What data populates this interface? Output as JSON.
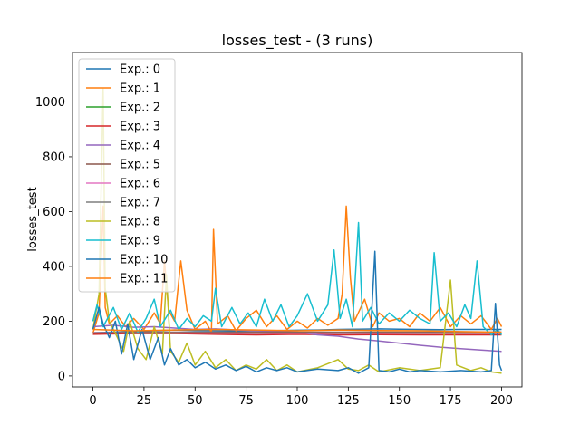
{
  "chart_data": {
    "type": "line",
    "title": "losses_test - (3 runs)",
    "xlabel": "",
    "ylabel": "losses_test",
    "xlim": [
      -10,
      210
    ],
    "ylim": [
      -40,
      1180
    ],
    "xticks": [
      0,
      25,
      50,
      75,
      100,
      125,
      150,
      175,
      200
    ],
    "yticks": [
      0,
      200,
      400,
      600,
      800,
      1000
    ],
    "grid": false,
    "legend_position": "top-left",
    "series": [
      {
        "name": "Exp.: 0",
        "color": "#1f77b4",
        "values": [
          [
            0,
            158
          ],
          [
            10,
            160
          ],
          [
            20,
            162
          ],
          [
            30,
            165
          ],
          [
            40,
            168
          ],
          [
            50,
            166
          ],
          [
            60,
            165
          ],
          [
            70,
            164
          ],
          [
            80,
            165
          ],
          [
            90,
            166
          ],
          [
            100,
            167
          ],
          [
            110,
            168
          ],
          [
            120,
            170
          ],
          [
            130,
            171
          ],
          [
            140,
            172
          ],
          [
            150,
            171
          ],
          [
            160,
            170
          ],
          [
            170,
            169
          ],
          [
            180,
            170
          ],
          [
            190,
            170
          ],
          [
            200,
            170
          ]
        ]
      },
      {
        "name": "Exp.: 1",
        "color": "#ff7f0e",
        "values": [
          [
            0,
            155
          ],
          [
            3,
            230
          ],
          [
            5,
            620
          ],
          [
            6,
            250
          ],
          [
            8,
            190
          ],
          [
            12,
            220
          ],
          [
            16,
            180
          ],
          [
            20,
            210
          ],
          [
            25,
            170
          ],
          [
            30,
            230
          ],
          [
            33,
            190
          ],
          [
            35,
            420
          ],
          [
            37,
            240
          ],
          [
            40,
            200
          ],
          [
            43,
            420
          ],
          [
            46,
            240
          ],
          [
            50,
            170
          ],
          [
            55,
            200
          ],
          [
            58,
            160
          ],
          [
            59,
            535
          ],
          [
            61,
            190
          ],
          [
            66,
            220
          ],
          [
            70,
            165
          ],
          [
            75,
            210
          ],
          [
            80,
            240
          ],
          [
            85,
            180
          ],
          [
            90,
            220
          ],
          [
            95,
            170
          ],
          [
            100,
            200
          ],
          [
            105,
            175
          ],
          [
            110,
            210
          ],
          [
            115,
            185
          ],
          [
            120,
            210
          ],
          [
            122,
            300
          ],
          [
            124,
            620
          ],
          [
            126,
            360
          ],
          [
            128,
            200
          ],
          [
            133,
            280
          ],
          [
            137,
            180
          ],
          [
            140,
            230
          ],
          [
            145,
            200
          ],
          [
            150,
            210
          ],
          [
            155,
            180
          ],
          [
            160,
            230
          ],
          [
            165,
            200
          ],
          [
            170,
            250
          ],
          [
            175,
            180
          ],
          [
            180,
            220
          ],
          [
            185,
            190
          ],
          [
            190,
            220
          ],
          [
            195,
            170
          ],
          [
            198,
            210
          ],
          [
            200,
            180
          ]
        ]
      },
      {
        "name": "Exp.: 2",
        "color": "#2ca02c",
        "values": [
          [
            0,
            155
          ],
          [
            25,
            155
          ],
          [
            50,
            155
          ],
          [
            75,
            155
          ],
          [
            100,
            155
          ],
          [
            125,
            155
          ],
          [
            150,
            155
          ],
          [
            175,
            155
          ],
          [
            200,
            155
          ]
        ]
      },
      {
        "name": "Exp.: 3",
        "color": "#d62728",
        "values": [
          [
            0,
            152
          ],
          [
            20,
            155
          ],
          [
            40,
            155
          ],
          [
            60,
            152
          ],
          [
            80,
            150
          ],
          [
            100,
            152
          ],
          [
            120,
            150
          ],
          [
            140,
            151
          ],
          [
            160,
            150
          ],
          [
            180,
            150
          ],
          [
            200,
            150
          ]
        ]
      },
      {
        "name": "Exp.: 4",
        "color": "#9467bd",
        "values": [
          [
            0,
            180
          ],
          [
            10,
            185
          ],
          [
            20,
            178
          ],
          [
            30,
            180
          ],
          [
            40,
            175
          ],
          [
            50,
            170
          ],
          [
            60,
            172
          ],
          [
            70,
            168
          ],
          [
            80,
            165
          ],
          [
            90,
            162
          ],
          [
            100,
            160
          ],
          [
            110,
            150
          ],
          [
            120,
            145
          ],
          [
            130,
            135
          ],
          [
            140,
            128
          ],
          [
            150,
            120
          ],
          [
            160,
            112
          ],
          [
            170,
            105
          ],
          [
            180,
            100
          ],
          [
            190,
            95
          ],
          [
            200,
            90
          ]
        ]
      },
      {
        "name": "Exp.: 5",
        "color": "#8c564b",
        "values": [
          [
            0,
            158
          ],
          [
            25,
            160
          ],
          [
            50,
            160
          ],
          [
            75,
            160
          ],
          [
            100,
            160
          ],
          [
            125,
            160
          ],
          [
            150,
            160
          ],
          [
            175,
            160
          ],
          [
            200,
            160
          ]
        ]
      },
      {
        "name": "Exp.: 6",
        "color": "#e377c2",
        "values": [
          [
            0,
            158
          ],
          [
            25,
            157
          ],
          [
            50,
            157
          ],
          [
            75,
            156
          ],
          [
            100,
            156
          ],
          [
            125,
            156
          ],
          [
            150,
            156
          ],
          [
            175,
            156
          ],
          [
            200,
            156
          ]
        ]
      },
      {
        "name": "Exp.: 7",
        "color": "#7f7f7f",
        "values": [
          [
            0,
            157
          ],
          [
            25,
            157
          ],
          [
            50,
            157
          ],
          [
            75,
            157
          ],
          [
            100,
            157
          ],
          [
            125,
            157
          ],
          [
            150,
            157
          ],
          [
            175,
            157
          ],
          [
            200,
            157
          ]
        ]
      },
      {
        "name": "Exp.: 8",
        "color": "#bcbd22",
        "values": [
          [
            0,
            170
          ],
          [
            3,
            300
          ],
          [
            5,
            1050
          ],
          [
            6,
            320
          ],
          [
            8,
            200
          ],
          [
            12,
            140
          ],
          [
            15,
            90
          ],
          [
            18,
            200
          ],
          [
            22,
            100
          ],
          [
            26,
            60
          ],
          [
            30,
            180
          ],
          [
            34,
            80
          ],
          [
            36,
            370
          ],
          [
            38,
            90
          ],
          [
            42,
            50
          ],
          [
            46,
            120
          ],
          [
            50,
            40
          ],
          [
            55,
            90
          ],
          [
            60,
            30
          ],
          [
            65,
            60
          ],
          [
            70,
            20
          ],
          [
            75,
            40
          ],
          [
            80,
            25
          ],
          [
            85,
            60
          ],
          [
            90,
            20
          ],
          [
            95,
            40
          ],
          [
            100,
            15
          ],
          [
            110,
            30
          ],
          [
            120,
            60
          ],
          [
            125,
            25
          ],
          [
            130,
            20
          ],
          [
            135,
            40
          ],
          [
            140,
            15
          ],
          [
            150,
            30
          ],
          [
            160,
            20
          ],
          [
            170,
            30
          ],
          [
            175,
            350
          ],
          [
            178,
            40
          ],
          [
            185,
            20
          ],
          [
            190,
            30
          ],
          [
            195,
            15
          ],
          [
            200,
            10
          ]
        ]
      },
      {
        "name": "Exp.: 9",
        "color": "#17becf",
        "values": [
          [
            0,
            200
          ],
          [
            2,
            260
          ],
          [
            5,
            180
          ],
          [
            10,
            250
          ],
          [
            14,
            170
          ],
          [
            18,
            230
          ],
          [
            22,
            160
          ],
          [
            26,
            210
          ],
          [
            30,
            280
          ],
          [
            33,
            180
          ],
          [
            38,
            240
          ],
          [
            42,
            170
          ],
          [
            46,
            210
          ],
          [
            50,
            180
          ],
          [
            54,
            220
          ],
          [
            58,
            200
          ],
          [
            60,
            320
          ],
          [
            63,
            180
          ],
          [
            68,
            250
          ],
          [
            72,
            190
          ],
          [
            76,
            230
          ],
          [
            80,
            180
          ],
          [
            84,
            280
          ],
          [
            88,
            200
          ],
          [
            92,
            260
          ],
          [
            96,
            180
          ],
          [
            100,
            220
          ],
          [
            105,
            300
          ],
          [
            110,
            200
          ],
          [
            115,
            260
          ],
          [
            118,
            460
          ],
          [
            121,
            210
          ],
          [
            124,
            280
          ],
          [
            127,
            180
          ],
          [
            130,
            560
          ],
          [
            132,
            200
          ],
          [
            136,
            250
          ],
          [
            140,
            190
          ],
          [
            145,
            230
          ],
          [
            150,
            200
          ],
          [
            155,
            240
          ],
          [
            160,
            210
          ],
          [
            165,
            190
          ],
          [
            167,
            450
          ],
          [
            170,
            200
          ],
          [
            174,
            230
          ],
          [
            178,
            180
          ],
          [
            182,
            260
          ],
          [
            185,
            210
          ],
          [
            188,
            420
          ],
          [
            191,
            180
          ],
          [
            195,
            150
          ],
          [
            198,
            170
          ],
          [
            200,
            150
          ]
        ]
      },
      {
        "name": "Exp.: 10",
        "color": "#1f77b4",
        "values": [
          [
            0,
            170
          ],
          [
            3,
            250
          ],
          [
            5,
            190
          ],
          [
            8,
            140
          ],
          [
            11,
            200
          ],
          [
            14,
            80
          ],
          [
            17,
            190
          ],
          [
            20,
            60
          ],
          [
            24,
            170
          ],
          [
            28,
            60
          ],
          [
            32,
            140
          ],
          [
            35,
            40
          ],
          [
            38,
            100
          ],
          [
            42,
            40
          ],
          [
            46,
            60
          ],
          [
            50,
            30
          ],
          [
            55,
            50
          ],
          [
            60,
            25
          ],
          [
            65,
            40
          ],
          [
            70,
            20
          ],
          [
            75,
            35
          ],
          [
            80,
            15
          ],
          [
            85,
            30
          ],
          [
            90,
            20
          ],
          [
            95,
            30
          ],
          [
            100,
            15
          ],
          [
            110,
            25
          ],
          [
            120,
            20
          ],
          [
            125,
            30
          ],
          [
            130,
            10
          ],
          [
            135,
            30
          ],
          [
            138,
            455
          ],
          [
            140,
            20
          ],
          [
            145,
            15
          ],
          [
            150,
            25
          ],
          [
            155,
            15
          ],
          [
            160,
            20
          ],
          [
            170,
            15
          ],
          [
            180,
            20
          ],
          [
            190,
            15
          ],
          [
            195,
            20
          ],
          [
            197,
            265
          ],
          [
            199,
            40
          ],
          [
            200,
            20
          ]
        ]
      },
      {
        "name": "Exp.: 11",
        "color": "#ff7f0e",
        "values": [
          [
            0,
            170
          ],
          [
            20,
            165
          ],
          [
            40,
            168
          ],
          [
            60,
            170
          ],
          [
            80,
            168
          ],
          [
            100,
            165
          ],
          [
            120,
            168
          ],
          [
            140,
            166
          ],
          [
            160,
            165
          ],
          [
            180,
            162
          ],
          [
            200,
            160
          ]
        ]
      }
    ]
  }
}
